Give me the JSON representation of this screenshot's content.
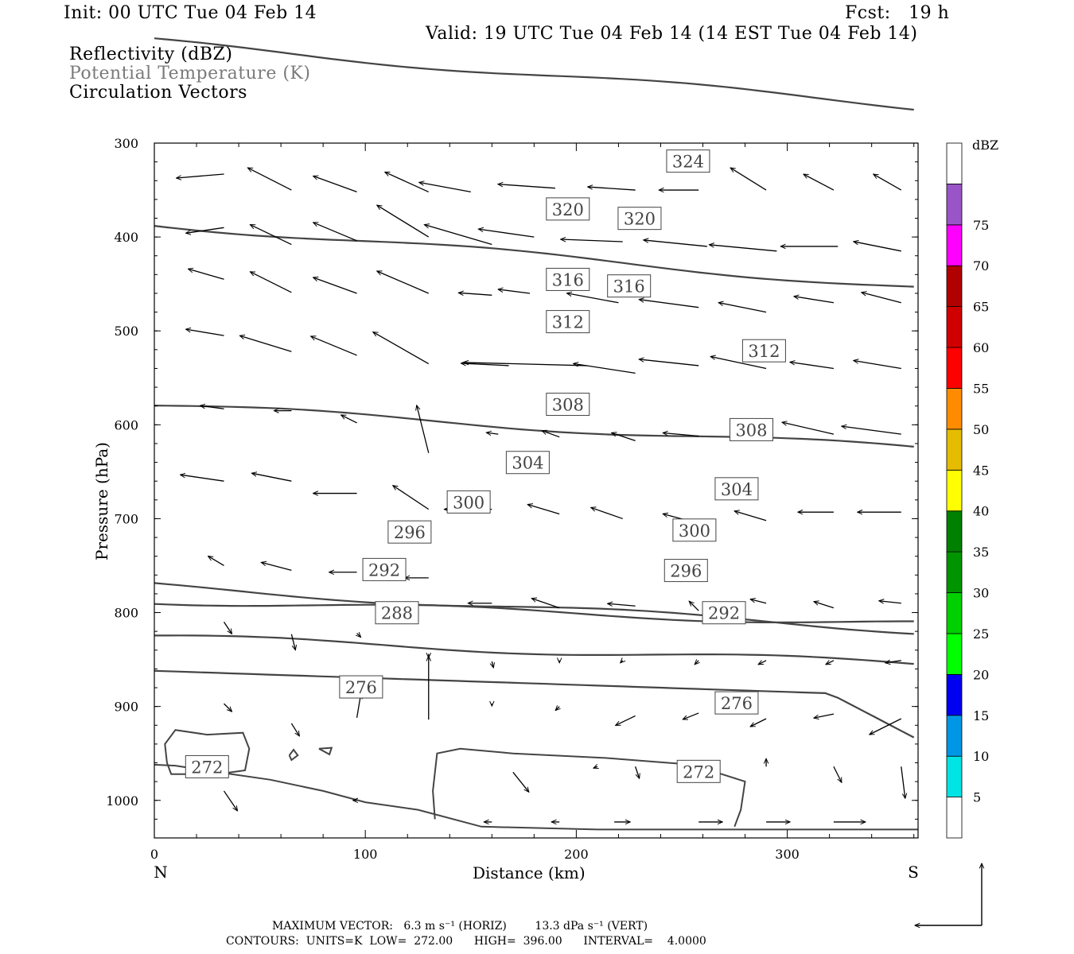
{
  "header": {
    "init": "Init: 00 UTC Tue 04 Feb 14",
    "fcst": "Fcst:   19 h",
    "valid": "Valid: 19 UTC Tue 04 Feb 14 (14 EST Tue 04 Feb 14)",
    "layers": [
      "Reflectivity (dBZ)",
      "Potential Temperature (K)",
      "Circulation Vectors"
    ]
  },
  "footer": {
    "line1": "MAXIMUM VECTOR:   6.3 m s⁻¹ (HORIZ)        13.3 dPa s⁻¹ (VERT)",
    "line2": "CONTOURS:  UNITS=K  LOW=  272.00      HIGH=  396.00      INTERVAL=    4.0000"
  },
  "colors": {
    "contour": "#444444",
    "vector": "#000000",
    "frame": "#000000"
  },
  "chart_data": {
    "type": "contour",
    "xlabel": "Distance (km)",
    "ylabel": "Pressure (hPa)",
    "xlim": [
      0,
      362
    ],
    "ylim": [
      1040,
      300
    ],
    "x_ticks": [
      0,
      100,
      200,
      300
    ],
    "y_ticks": [
      300,
      400,
      500,
      600,
      700,
      800,
      900,
      1000
    ],
    "x_end_labels": {
      "left": "N",
      "right": "S"
    },
    "colorbar": {
      "title": "dBZ",
      "labels": [
        "5",
        "10",
        "15",
        "20",
        "25",
        "30",
        "35",
        "40",
        "45",
        "50",
        "55",
        "60",
        "65",
        "70",
        "75"
      ],
      "colors": [
        "#ffffff",
        "#00e4e4",
        "#0096e6",
        "#0000f0",
        "#00ff00",
        "#00d000",
        "#009400",
        "#008000",
        "#ffff00",
        "#e6bc00",
        "#ff8c00",
        "#ff0000",
        "#d00000",
        "#b00000",
        "#ff00ff",
        "#9955c8",
        "#ffffff"
      ]
    },
    "isentropes": [
      {
        "theta": 272,
        "labels": [
          [
            25,
            965
          ],
          [
            258,
            970
          ]
        ]
      },
      {
        "theta": 276,
        "labels": [
          [
            98,
            880
          ],
          [
            276,
            897
          ]
        ]
      },
      {
        "theta": 280,
        "labels": []
      },
      {
        "theta": 284,
        "labels": []
      },
      {
        "theta": 288,
        "labels": [
          [
            115,
            801
          ]
        ]
      },
      {
        "theta": 292,
        "labels": [
          [
            109,
            755
          ],
          [
            270,
            801
          ]
        ]
      },
      {
        "theta": 296,
        "labels": [
          [
            121,
            715
          ],
          [
            252,
            756
          ]
        ]
      },
      {
        "theta": 300,
        "labels": [
          [
            149,
            683
          ],
          [
            256,
            713
          ]
        ]
      },
      {
        "theta": 304,
        "labels": [
          [
            177,
            641
          ],
          [
            276,
            669
          ]
        ]
      },
      {
        "theta": 308,
        "labels": [
          [
            196,
            579
          ],
          [
            283,
            606
          ]
        ]
      },
      {
        "theta": 312,
        "labels": [
          [
            196,
            491
          ],
          [
            289,
            522
          ]
        ]
      },
      {
        "theta": 316,
        "labels": [
          [
            196,
            446
          ],
          [
            225,
            453
          ]
        ]
      },
      {
        "theta": 320,
        "labels": [
          [
            196,
            371
          ],
          [
            230,
            381
          ]
        ]
      },
      {
        "theta": 324,
        "labels": [
          [
            253,
            320
          ]
        ]
      }
    ],
    "max_vector": {
      "horiz": "6.3 m s-1",
      "vert": "13.3 dPa s-1"
    },
    "contour_info": {
      "units": "K",
      "low": 272.0,
      "high": 396.0,
      "interval": 4.0
    }
  }
}
